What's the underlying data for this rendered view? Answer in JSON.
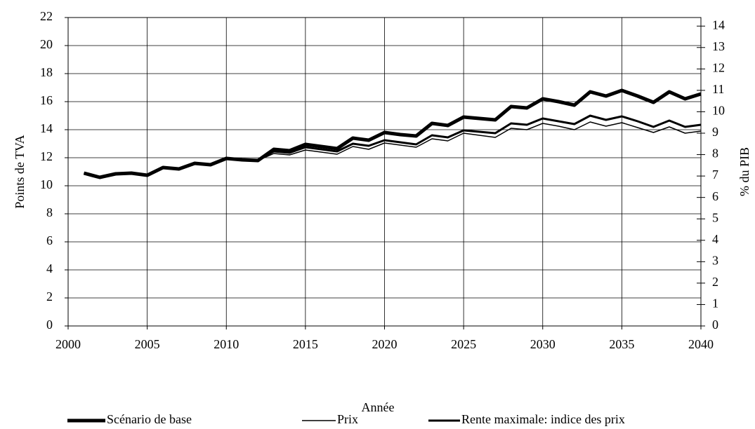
{
  "chart_data": {
    "type": "line",
    "xlabel": "Année",
    "ylabel": "Points de TVA",
    "y2label": "% du PIB",
    "x": [
      2001,
      2002,
      2003,
      2004,
      2005,
      2006,
      2007,
      2008,
      2009,
      2010,
      2011,
      2012,
      2013,
      2014,
      2015,
      2016,
      2017,
      2018,
      2019,
      2020,
      2021,
      2022,
      2023,
      2024,
      2025,
      2026,
      2027,
      2028,
      2029,
      2030,
      2031,
      2032,
      2033,
      2034,
      2035,
      2036,
      2037,
      2038,
      2039,
      2040
    ],
    "series": [
      {
        "name": "Scénario de base",
        "color": "#000000",
        "line_width": 5,
        "values": [
          10.9,
          10.6,
          10.85,
          10.9,
          10.75,
          11.3,
          11.2,
          11.6,
          11.5,
          11.95,
          11.85,
          11.8,
          12.6,
          12.5,
          12.95,
          12.8,
          12.65,
          13.4,
          13.25,
          13.8,
          13.65,
          13.55,
          14.45,
          14.3,
          14.9,
          14.8,
          14.7,
          15.65,
          15.55,
          16.2,
          16.0,
          15.75,
          16.7,
          16.4,
          16.8,
          16.4,
          15.95,
          16.7,
          16.2,
          16.55
        ]
      },
      {
        "name": "Prix",
        "color": "#000000",
        "line_width": 1.5,
        "values": [
          10.9,
          10.6,
          10.85,
          10.9,
          10.75,
          11.3,
          11.2,
          11.6,
          11.5,
          11.95,
          11.85,
          11.8,
          12.3,
          12.2,
          12.55,
          12.4,
          12.25,
          12.8,
          12.6,
          13.05,
          12.9,
          12.75,
          13.35,
          13.2,
          13.75,
          13.6,
          13.45,
          14.1,
          14.0,
          14.45,
          14.25,
          14.0,
          14.55,
          14.25,
          14.5,
          14.15,
          13.8,
          14.2,
          13.75,
          13.9
        ]
      },
      {
        "name": "Rente maximale: indice des prix",
        "color": "#000000",
        "line_width": 3,
        "values": [
          10.9,
          10.6,
          10.85,
          10.9,
          10.75,
          11.3,
          11.2,
          11.6,
          11.5,
          11.95,
          11.85,
          11.8,
          12.45,
          12.35,
          12.75,
          12.6,
          12.45,
          13.0,
          12.85,
          13.25,
          13.1,
          12.95,
          13.6,
          13.45,
          13.95,
          13.85,
          13.75,
          14.45,
          14.35,
          14.8,
          14.6,
          14.4,
          15.0,
          14.7,
          14.95,
          14.6,
          14.2,
          14.65,
          14.2,
          14.35
        ]
      }
    ],
    "xlim": [
      2000,
      2040
    ],
    "xticks": [
      2000,
      2005,
      2010,
      2015,
      2020,
      2025,
      2030,
      2035,
      2040
    ],
    "ylim": [
      0,
      22
    ],
    "yticks": [
      0,
      2,
      4,
      6,
      8,
      10,
      12,
      14,
      16,
      18,
      20,
      22
    ],
    "y2lim": [
      0,
      14.4
    ],
    "y2ticks": [
      0,
      1,
      2,
      3,
      4,
      5,
      6,
      7,
      8,
      9,
      10,
      11,
      12,
      13,
      14
    ],
    "grid": true,
    "legend": "bottom"
  }
}
